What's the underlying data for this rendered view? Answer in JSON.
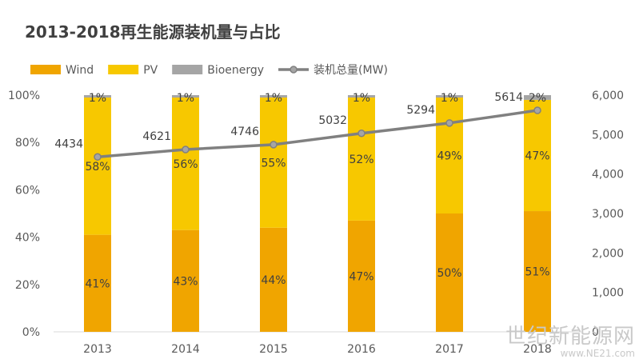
{
  "chart_data": {
    "type": "bar",
    "title": "2013-2018再生能源装机量与占比",
    "categories": [
      "2013",
      "2014",
      "2015",
      "2016",
      "2017",
      "2018"
    ],
    "series": [
      {
        "name": "Wind",
        "type": "bar",
        "values": [
          41,
          43,
          44,
          47,
          50,
          51
        ],
        "labels": [
          "41%",
          "43%",
          "44%",
          "47%",
          "50%",
          "51%"
        ],
        "color": "#f0a500"
      },
      {
        "name": "PV",
        "type": "bar",
        "values": [
          58,
          56,
          55,
          52,
          49,
          47
        ],
        "labels": [
          "58%",
          "56%",
          "55%",
          "52%",
          "49%",
          "47%"
        ],
        "color": "#f7c800"
      },
      {
        "name": "Bioenergy",
        "type": "bar",
        "values": [
          1,
          1,
          1,
          1,
          1,
          2
        ],
        "labels": [
          "1%",
          "1%",
          "1%",
          "1%",
          "1%",
          "2%"
        ],
        "color": "#a5a5a5"
      },
      {
        "name": "装机总量(MW)",
        "type": "line",
        "axis": "right",
        "values": [
          4434,
          4621,
          4746,
          5032,
          5294,
          5614
        ],
        "labels": [
          "4434",
          "4621",
          "4746",
          "5032",
          "5294",
          "5614"
        ],
        "color": "#808080"
      }
    ],
    "ylim": [
      0,
      100
    ],
    "y_ticks": [
      "0%",
      "20%",
      "40%",
      "60%",
      "80%",
      "100%"
    ],
    "y2lim": [
      0,
      6000
    ],
    "y2_ticks": [
      "0",
      "1,000",
      "2,000",
      "3,000",
      "4,000",
      "5,000",
      "6,000"
    ],
    "stacked": true,
    "legend_position": "top-left",
    "grid": false
  },
  "watermark": {
    "text": "世纪新能源网",
    "url": "www.NE21.com"
  }
}
